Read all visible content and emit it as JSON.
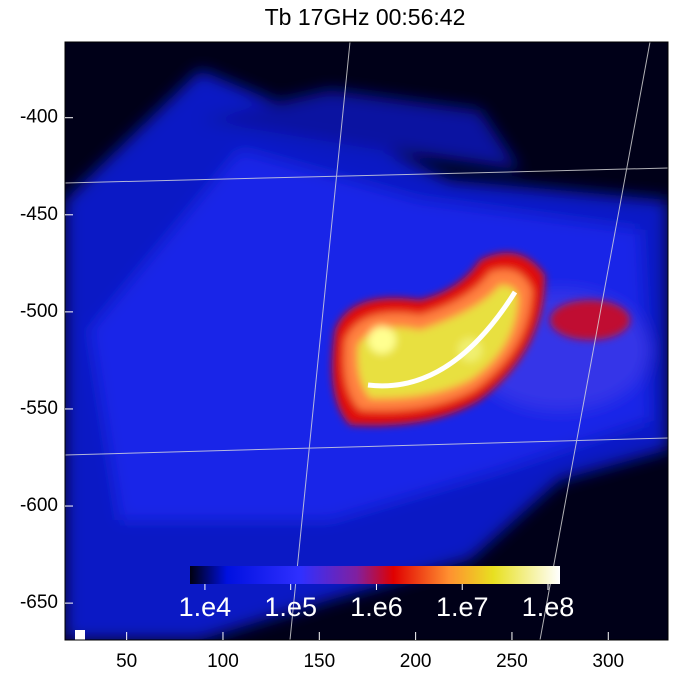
{
  "chart_data": {
    "type": "image",
    "title": "Tb 17GHz 00:56:42",
    "xlim": [
      18,
      331
    ],
    "xticks": [
      50,
      100,
      150,
      200,
      250,
      300
    ],
    "ylim": [
      -669,
      -361
    ],
    "yticks": [
      -400,
      -450,
      -500,
      -550,
      -600,
      -650
    ],
    "colorbar": {
      "log": true,
      "lim": [
        6700,
        138000000
      ],
      "ticks": [
        {
          "value": 10000,
          "label": "1.e4"
        },
        {
          "value": 100000,
          "label": "1.e5"
        },
        {
          "value": 1000000,
          "label": "1.e6"
        },
        {
          "value": 10000000,
          "label": "1.e7"
        },
        {
          "value": 100000000,
          "label": "1.e8"
        }
      ]
    }
  }
}
